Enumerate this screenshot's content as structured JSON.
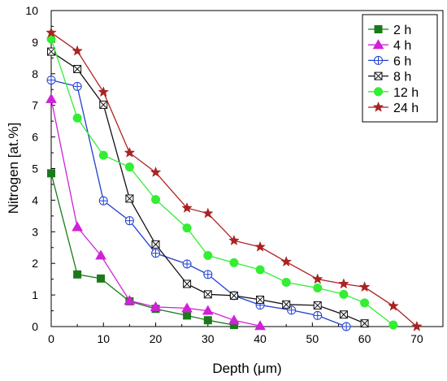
{
  "chart_data": {
    "type": "line",
    "title": "",
    "xlabel": "Depth (μm)",
    "ylabel": "Nitrogen [at.%]",
    "xlim": [
      0,
      75
    ],
    "ylim": [
      0,
      10
    ],
    "xticks": [
      "0",
      "10",
      "20",
      "30",
      "40",
      "50",
      "60",
      "70"
    ],
    "yticks": [
      "0",
      "1",
      "2",
      "3",
      "4",
      "5",
      "6",
      "7",
      "8",
      "9",
      "10"
    ],
    "legend_position": "top-right",
    "grid": false,
    "series": [
      {
        "name": "2 h",
        "color": "#1a7a1a",
        "marker": "square",
        "x": [
          0,
          5,
          9.5,
          15,
          20,
          26,
          30,
          35
        ],
        "y": [
          4.85,
          1.65,
          1.52,
          0.8,
          0.56,
          0.35,
          0.2,
          0.05
        ]
      },
      {
        "name": "4 h",
        "color": "#d020d8",
        "marker": "triangle",
        "x": [
          0,
          5,
          9.5,
          15,
          20,
          26,
          30,
          35,
          40
        ],
        "y": [
          7.2,
          3.15,
          2.25,
          0.82,
          0.62,
          0.58,
          0.5,
          0.2,
          0.02
        ]
      },
      {
        "name": "6 h",
        "color": "#2040d0",
        "marker": "circle-plus",
        "x": [
          0,
          5,
          10,
          15,
          20,
          26,
          30,
          35,
          40,
          46,
          51,
          56.5
        ],
        "y": [
          7.8,
          7.6,
          3.98,
          3.35,
          2.32,
          1.98,
          1.65,
          0.98,
          0.68,
          0.52,
          0.35,
          0
        ]
      },
      {
        "name": "8 h",
        "color": "#111111",
        "marker": "square-x",
        "x": [
          0,
          5,
          10,
          15,
          20,
          26,
          30,
          35,
          40,
          45,
          51,
          56,
          60
        ],
        "y": [
          8.7,
          8.15,
          7.02,
          4.05,
          2.6,
          1.35,
          1.02,
          0.98,
          0.85,
          0.7,
          0.67,
          0.38,
          0.1
        ]
      },
      {
        "name": "12 h",
        "color": "#33ee33",
        "marker": "circle",
        "x": [
          0,
          5,
          10,
          15,
          20,
          26,
          30,
          35,
          40,
          45,
          51,
          56,
          60,
          65.5
        ],
        "y": [
          9.1,
          6.6,
          5.42,
          5.05,
          4.02,
          3.12,
          2.25,
          2.02,
          1.8,
          1.4,
          1.22,
          1.02,
          0.75,
          0.05
        ]
      },
      {
        "name": "24 h",
        "color": "#aa2222",
        "marker": "star",
        "x": [
          0,
          5,
          10,
          15,
          20,
          26,
          30,
          35,
          40,
          45,
          51,
          56,
          60,
          65.5,
          70
        ],
        "y": [
          9.3,
          8.72,
          7.42,
          5.5,
          4.88,
          3.75,
          3.58,
          2.72,
          2.52,
          2.05,
          1.5,
          1.35,
          1.25,
          0.65,
          0
        ]
      }
    ]
  }
}
